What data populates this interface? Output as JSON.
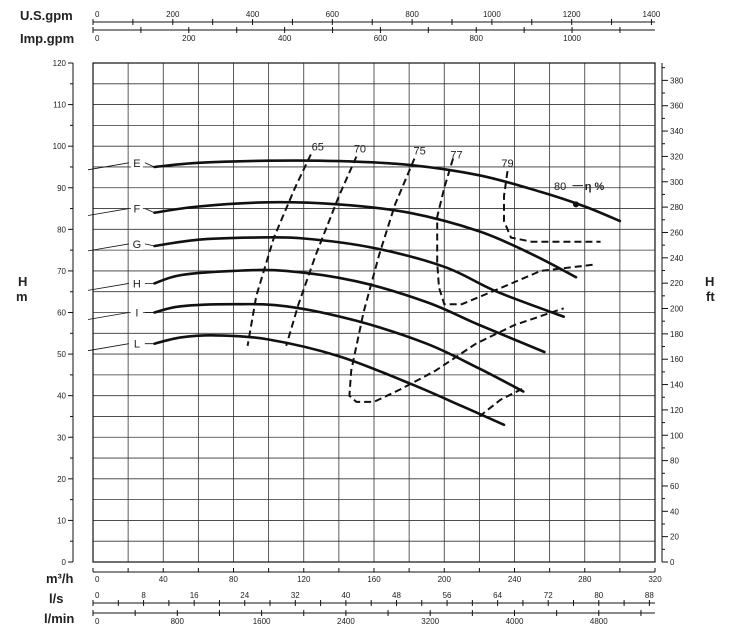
{
  "chart_data": {
    "type": "line",
    "units": {
      "us_gpm": "U.S.gpm",
      "imp_gpm": "Imp.gpm",
      "h_m_top": "H",
      "h_m_bottom": "m",
      "h_ft_top": "H",
      "h_ft_bottom": "ft",
      "m3h": "m³/h",
      "ls": "l/s",
      "lmin": "l/min"
    },
    "axes": {
      "x_m3h": {
        "min": 0,
        "max": 320,
        "ticks": [
          0,
          40,
          80,
          120,
          160,
          200,
          240,
          280,
          320
        ]
      },
      "y_m": {
        "min": 0,
        "max": 120,
        "ticks": [
          0,
          10,
          20,
          30,
          40,
          50,
          60,
          70,
          80,
          90,
          100,
          110,
          120
        ]
      },
      "y_ft": {
        "ticks": [
          0,
          20,
          40,
          60,
          80,
          100,
          120,
          140,
          160,
          180,
          200,
          220,
          240,
          260,
          280,
          300,
          320,
          340,
          360,
          380
        ]
      },
      "us_gpm": {
        "ticks": [
          0,
          200,
          400,
          600,
          800,
          1000,
          1200,
          1400
        ]
      },
      "imp_gpm": {
        "ticks": [
          0,
          200,
          400,
          600,
          800,
          1000
        ]
      },
      "ls": {
        "ticks": [
          0,
          8,
          16,
          24,
          32,
          40,
          48,
          56,
          64,
          72,
          80,
          88
        ]
      },
      "lmin": {
        "ticks": [
          0,
          800,
          1600,
          2400,
          3200,
          4000,
          4800
        ]
      }
    },
    "grid": true,
    "series": [
      {
        "name": "E",
        "label_at": [
          25,
          96
        ],
        "points": [
          [
            35,
            95
          ],
          [
            60,
            96
          ],
          [
            100,
            96.5
          ],
          [
            140,
            96.4
          ],
          [
            180,
            95.5
          ],
          [
            220,
            93
          ],
          [
            255,
            89
          ],
          [
            280,
            85.5
          ],
          [
            300,
            82
          ]
        ]
      },
      {
        "name": "F",
        "label_at": [
          25,
          85
        ],
        "points": [
          [
            35,
            84
          ],
          [
            60,
            85.5
          ],
          [
            100,
            86.5
          ],
          [
            140,
            86
          ],
          [
            180,
            84
          ],
          [
            220,
            79.5
          ],
          [
            250,
            74
          ],
          [
            275,
            68.5
          ]
        ]
      },
      {
        "name": "G",
        "label_at": [
          25,
          76.5
        ],
        "points": [
          [
            35,
            76
          ],
          [
            60,
            77.5
          ],
          [
            90,
            78
          ],
          [
            120,
            77.8
          ],
          [
            160,
            75.5
          ],
          [
            200,
            71
          ],
          [
            230,
            65
          ],
          [
            268,
            59
          ]
        ]
      },
      {
        "name": "H",
        "label_at": [
          25,
          67
        ],
        "points": [
          [
            35,
            67
          ],
          [
            50,
            69
          ],
          [
            80,
            70
          ],
          [
            110,
            70
          ],
          [
            150,
            67.5
          ],
          [
            190,
            62.5
          ],
          [
            220,
            57
          ],
          [
            257,
            50.5
          ]
        ]
      },
      {
        "name": "I",
        "label_at": [
          25,
          60
        ],
        "points": [
          [
            35,
            60
          ],
          [
            50,
            61.5
          ],
          [
            80,
            62
          ],
          [
            110,
            61.5
          ],
          [
            150,
            58
          ],
          [
            190,
            52.5
          ],
          [
            220,
            46.5
          ],
          [
            245,
            41
          ]
        ]
      },
      {
        "name": "L",
        "label_at": [
          25,
          52.5
        ],
        "points": [
          [
            35,
            52.5
          ],
          [
            50,
            54
          ],
          [
            70,
            54.5
          ],
          [
            100,
            53.5
          ],
          [
            140,
            49.5
          ],
          [
            180,
            43
          ],
          [
            210,
            37.5
          ],
          [
            234,
            33
          ]
        ]
      }
    ],
    "efficiency": {
      "label": "η %",
      "best_point": [
        275,
        86
      ],
      "lines": [
        {
          "label": "65",
          "label_at": [
            128,
            99
          ],
          "points": [
            [
              124,
              98
            ],
            [
              115,
              90
            ],
            [
              103,
              78
            ],
            [
              93,
              64
            ],
            [
              88,
              52
            ]
          ]
        },
        {
          "label": "70",
          "label_at": [
            152,
            98.5
          ],
          "points": [
            [
              150,
              97.5
            ],
            [
              140,
              88
            ],
            [
              127,
              74
            ],
            [
              117,
              62
            ],
            [
              110,
              52
            ]
          ]
        },
        {
          "label": "75",
          "label_at": [
            186,
            98
          ],
          "points": [
            [
              183,
              97
            ],
            [
              172,
              86
            ],
            [
              163,
              74
            ],
            [
              154,
              60
            ],
            [
              147,
              46
            ],
            [
              146,
              40
            ],
            [
              150,
              38.5
            ],
            [
              160,
              38.5
            ],
            [
              175,
              41.5
            ],
            [
              195,
              46
            ],
            [
              218,
              52.5
            ],
            [
              240,
              57
            ],
            [
              268,
              61
            ]
          ]
        },
        {
          "label": "77",
          "label_at": [
            207,
            97
          ],
          "points": [
            [
              205,
              97
            ],
            [
              200,
              90
            ],
            [
              196,
              83
            ],
            [
              196,
              72
            ],
            [
              197,
              66
            ],
            [
              200,
              62
            ],
            [
              210,
              62
            ],
            [
              230,
              65.5
            ],
            [
              255,
              70
            ],
            [
              285,
              71.5
            ]
          ]
        },
        {
          "label": "79",
          "label_at": [
            236,
            95
          ],
          "points": [
            [
              236,
              94
            ],
            [
              234,
              88
            ],
            [
              234,
              82
            ],
            [
              238,
              78
            ],
            [
              250,
              77
            ],
            [
              270,
              77
            ],
            [
              289,
              77
            ]
          ]
        },
        {
          "label": "80",
          "label_at": [
            266,
            89.5
          ],
          "points": []
        },
        {
          "label": "",
          "points": [
            [
              220,
              35
            ],
            [
              232,
              39
            ],
            [
              246,
              42
            ]
          ]
        }
      ]
    }
  }
}
